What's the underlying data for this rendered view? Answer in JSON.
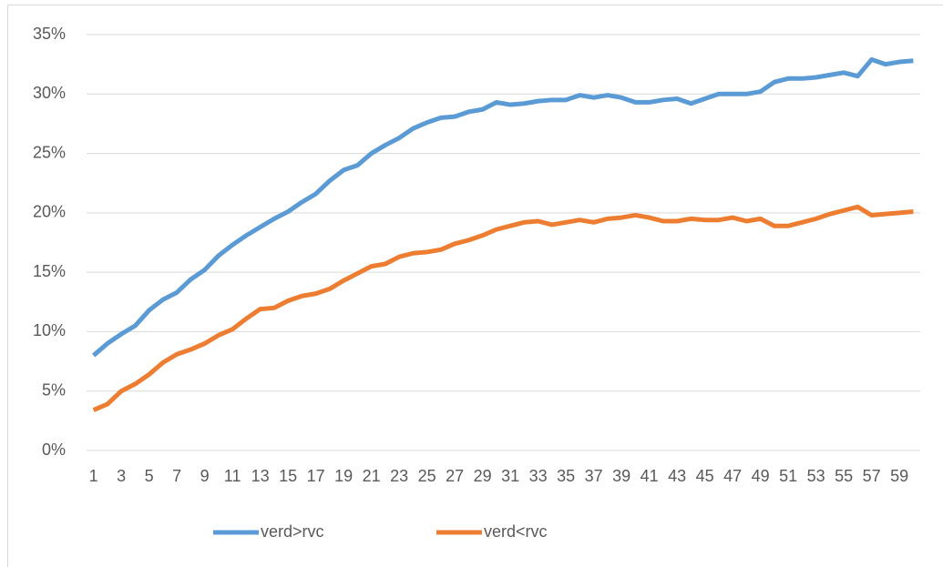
{
  "chart_data": {
    "type": "line",
    "categories": [
      1,
      null,
      3,
      null,
      5,
      null,
      7,
      null,
      9,
      null,
      11,
      null,
      13,
      null,
      15,
      null,
      17,
      null,
      19,
      null,
      21,
      null,
      23,
      null,
      25,
      null,
      27,
      null,
      29,
      null,
      31,
      null,
      33,
      null,
      35,
      null,
      37,
      null,
      39,
      null,
      41,
      null,
      43,
      null,
      45,
      null,
      47,
      null,
      49,
      null,
      51,
      null,
      53,
      null,
      55,
      null,
      57,
      null,
      59,
      null
    ],
    "series": [
      {
        "name": "verd>rvc",
        "color": "#5b9bd5",
        "values": [
          8.0,
          9.0,
          9.8,
          10.5,
          11.8,
          12.7,
          13.3,
          14.4,
          15.2,
          16.4,
          17.3,
          18.1,
          18.8,
          19.5,
          20.1,
          20.9,
          21.6,
          22.7,
          23.6,
          24.0,
          25.0,
          25.7,
          26.3,
          27.1,
          27.6,
          28.0,
          28.1,
          28.5,
          28.7,
          29.3,
          29.1,
          29.2,
          29.4,
          29.5,
          29.5,
          29.9,
          29.7,
          29.9,
          29.7,
          29.3,
          29.3,
          29.5,
          29.6,
          29.2,
          29.6,
          30.0,
          30.0,
          30.0,
          30.2,
          31.0,
          31.3,
          31.3,
          31.4,
          31.6,
          31.8,
          31.5,
          32.9,
          32.5,
          32.7,
          32.8
        ]
      },
      {
        "name": "verd<rvc",
        "color": "#ed7d31",
        "values": [
          3.4,
          3.9,
          5.0,
          5.6,
          6.4,
          7.4,
          8.1,
          8.5,
          9.0,
          9.7,
          10.2,
          11.1,
          11.9,
          12.0,
          12.6,
          13.0,
          13.2,
          13.6,
          14.3,
          14.9,
          15.5,
          15.7,
          16.3,
          16.6,
          16.7,
          16.9,
          17.4,
          17.7,
          18.1,
          18.6,
          18.9,
          19.2,
          19.3,
          19.0,
          19.2,
          19.4,
          19.2,
          19.5,
          19.6,
          19.8,
          19.6,
          19.3,
          19.3,
          19.5,
          19.4,
          19.4,
          19.6,
          19.3,
          19.5,
          18.9,
          18.9,
          19.2,
          19.5,
          19.9,
          20.2,
          20.5,
          19.8,
          19.9,
          20.0,
          20.1
        ]
      }
    ],
    "ylim": [
      0,
      35
    ],
    "yticks": [
      {
        "value": 0,
        "label": "0%"
      },
      {
        "value": 5,
        "label": "5%"
      },
      {
        "value": 10,
        "label": "10%"
      },
      {
        "value": 15,
        "label": "15%"
      },
      {
        "value": 20,
        "label": "20%"
      },
      {
        "value": 25,
        "label": "25%"
      },
      {
        "value": 30,
        "label": "30%"
      },
      {
        "value": 35,
        "label": "35%"
      }
    ],
    "grid": true,
    "legend": "bottom"
  }
}
